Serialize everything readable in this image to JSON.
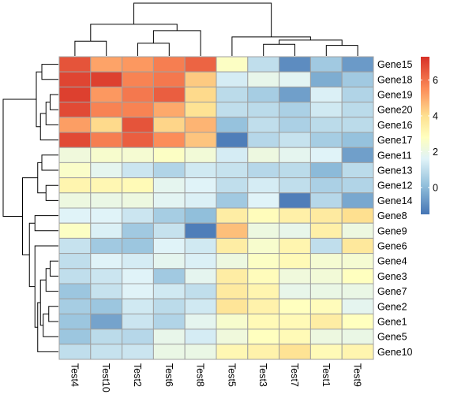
{
  "chart_data": {
    "type": "heatmap",
    "title": "",
    "xlabel": "",
    "ylabel": "",
    "columns": [
      "Test4",
      "Test10",
      "Test2",
      "Test6",
      "Test8",
      "Test5",
      "Test3",
      "Test7",
      "Test1",
      "Test9"
    ],
    "rows": [
      "Gene15",
      "Gene18",
      "Gene19",
      "Gene20",
      "Gene16",
      "Gene17",
      "Gene11",
      "Gene13",
      "Gene12",
      "Gene14",
      "Gene8",
      "Gene9",
      "Gene6",
      "Gene4",
      "Gene3",
      "Gene7",
      "Gene2",
      "Gene1",
      "Gene5",
      "Gene10"
    ],
    "values": [
      [
        6.6,
        5.1,
        5.3,
        5.8,
        6.3,
        2.7,
        1.0,
        -1.0,
        0.4,
        -0.7
      ],
      [
        6.9,
        7.0,
        5.7,
        5.9,
        4.4,
        1.4,
        1.9,
        1.7,
        -0.3,
        0.4
      ],
      [
        7.0,
        5.3,
        5.9,
        6.4,
        4.1,
        0.9,
        0.5,
        -0.6,
        1.5,
        0.7
      ],
      [
        6.8,
        5.7,
        5.7,
        5.0,
        3.9,
        1.0,
        0.9,
        0.6,
        1.3,
        0.9
      ],
      [
        5.2,
        4.1,
        6.6,
        4.2,
        4.8,
        0.2,
        1.0,
        0.6,
        0.9,
        0.9
      ],
      [
        6.8,
        5.8,
        6.4,
        5.5,
        4.5,
        -1.3,
        0.8,
        1.1,
        0.5,
        0.2
      ],
      [
        2.2,
        2.5,
        2.4,
        2.7,
        2.3,
        1.4,
        2.1,
        1.8,
        1.6,
        -0.6
      ],
      [
        2.6,
        1.8,
        1.2,
        0.7,
        1.3,
        1.1,
        0.8,
        0.9,
        0.0,
        0.9
      ],
      [
        3.2,
        3.1,
        3.0,
        1.8,
        1.6,
        1.0,
        1.4,
        1.0,
        0.6,
        0.7
      ],
      [
        2.1,
        2.0,
        2.1,
        1.7,
        1.5,
        0.4,
        1.6,
        -1.3,
        0.8,
        -0.4
      ],
      [
        1.6,
        1.6,
        1.2,
        0.5,
        0.1,
        3.5,
        2.9,
        3.4,
        3.6,
        4.0
      ],
      [
        2.7,
        1.5,
        0.4,
        1.1,
        -1.3,
        4.6,
        2.1,
        1.9,
        3.4,
        2.1
      ],
      [
        1.1,
        0.4,
        0.3,
        1.6,
        1.3,
        3.5,
        2.5,
        3.2,
        1.0,
        3.7
      ],
      [
        1.0,
        1.6,
        1.4,
        1.8,
        1.5,
        2.1,
        2.7,
        3.0,
        2.4,
        2.4
      ],
      [
        1.0,
        1.2,
        1.6,
        0.4,
        1.8,
        3.5,
        2.9,
        2.2,
        2.3,
        2.8
      ],
      [
        0.3,
        1.1,
        1.6,
        1.3,
        1.0,
        3.6,
        3.2,
        1.9,
        2.0,
        2.0
      ],
      [
        0.5,
        0.3,
        1.3,
        0.9,
        1.3,
        3.8,
        3.3,
        2.8,
        2.9,
        1.8
      ],
      [
        0.3,
        -0.5,
        1.2,
        0.7,
        1.8,
        2.5,
        3.0,
        3.0,
        3.5,
        2.8
      ],
      [
        0.3,
        0.9,
        0.8,
        1.9,
        1.4,
        2.2,
        2.8,
        3.0,
        2.1,
        2.0
      ],
      [
        1.0,
        1.1,
        1.2,
        2.0,
        2.0,
        3.1,
        3.3,
        3.9,
        3.0,
        3.2
      ]
    ],
    "zlim": [
      -1.5,
      7.3
    ],
    "palette": [
      "#4575b4",
      "#91bfdb",
      "#e0f3f8",
      "#ffffbf",
      "#fee090",
      "#fc8d59",
      "#d73027"
    ],
    "palette_stops": [
      -1.5,
      0.1,
      1.6,
      2.8,
      4.0,
      5.5,
      7.3
    ],
    "cell_border_color": "#a0a0a0",
    "dendrogram_color": "#000000",
    "legend": {
      "position": "right",
      "ticks": [
        0,
        2,
        4,
        6
      ]
    },
    "column_tree": {
      "order": [
        "Test4",
        "Test10",
        "Test2",
        "Test6",
        "Test8",
        "Test5",
        "Test3",
        "Test7",
        "Test1",
        "Test9"
      ],
      "merges": [
        [
          0,
          1,
          7.0
        ],
        [
          2,
          3,
          6.0
        ],
        [
          -2,
          4,
          12.0
        ],
        [
          -1,
          -3,
          15.0
        ],
        [
          6,
          7,
          5.5
        ],
        [
          8,
          9,
          5.0
        ],
        [
          -5,
          -6,
          7.5
        ],
        [
          5,
          -7,
          9.0
        ],
        [
          -4,
          -8,
          25.0
        ]
      ]
    },
    "row_tree": {
      "order": [
        "Gene15",
        "Gene18",
        "Gene19",
        "Gene20",
        "Gene16",
        "Gene17",
        "Gene11",
        "Gene13",
        "Gene12",
        "Gene14",
        "Gene8",
        "Gene9",
        "Gene6",
        "Gene4",
        "Gene3",
        "Gene7",
        "Gene2",
        "Gene1",
        "Gene5",
        "Gene10"
      ],
      "merges": [
        [
          0,
          1,
          6.0
        ],
        [
          2,
          3,
          3.0
        ],
        [
          -2,
          4,
          4.5
        ],
        [
          -3,
          5,
          6.5
        ],
        [
          -1,
          -4,
          8.0
        ],
        [
          6,
          7,
          6.0
        ],
        [
          8,
          9,
          4.5
        ],
        [
          -6,
          -7,
          7.5
        ],
        [
          10,
          11,
          8.5
        ],
        [
          13,
          14,
          3.0
        ],
        [
          -10,
          15,
          4.5
        ],
        [
          16,
          17,
          3.5
        ],
        [
          -12,
          18,
          5.5
        ],
        [
          -11,
          -13,
          6.5
        ],
        [
          -14,
          19,
          7.5
        ],
        [
          12,
          -15,
          8.5
        ],
        [
          -9,
          -16,
          10.5
        ],
        [
          -8,
          -17,
          13.0
        ],
        [
          -5,
          -18,
          20.0
        ]
      ]
    }
  }
}
